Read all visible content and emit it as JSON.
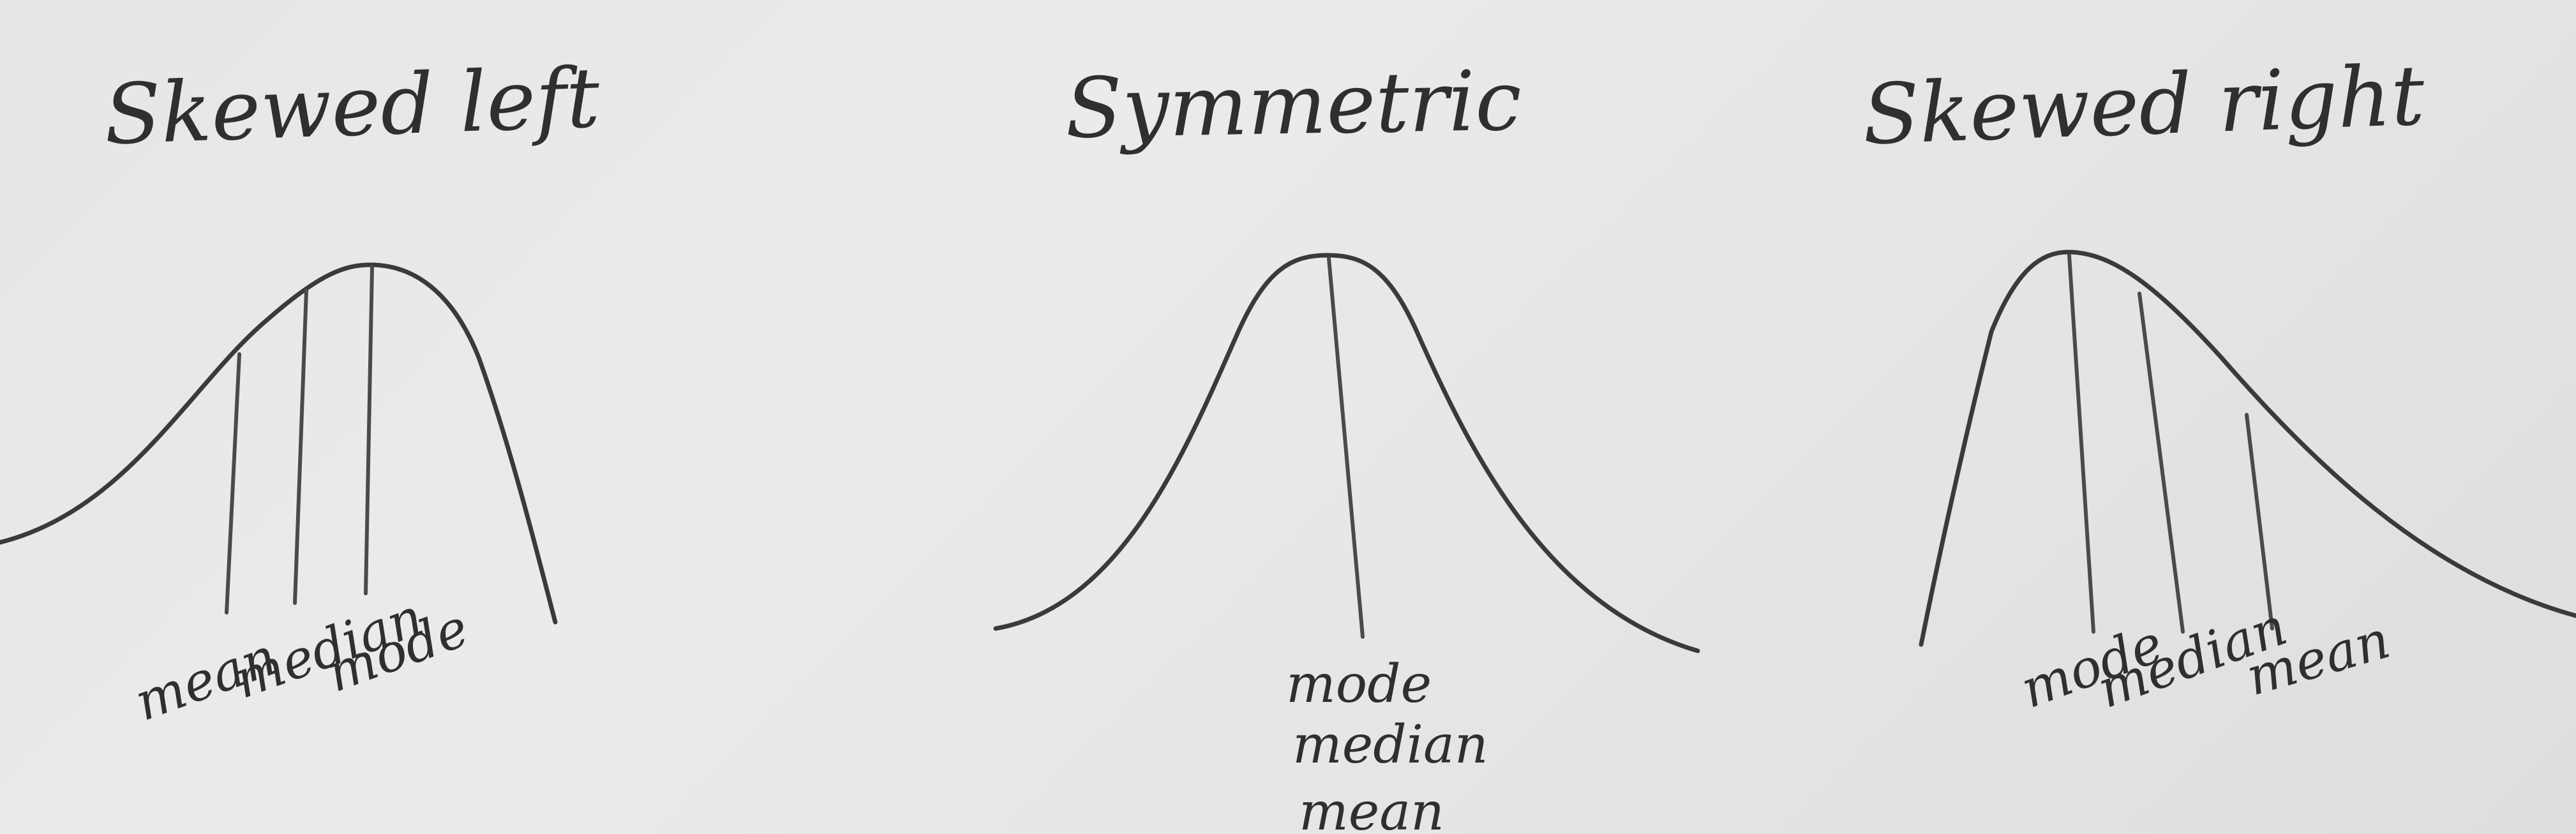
{
  "panels": [
    {
      "title": "Skewed left",
      "labels": [
        "mean",
        "median",
        "mode"
      ]
    },
    {
      "title": "Symmetric",
      "labels": [
        "mode",
        "median",
        "mean"
      ]
    },
    {
      "title": "Skewed right",
      "labels": [
        "mode",
        "median",
        "mean"
      ]
    }
  ]
}
